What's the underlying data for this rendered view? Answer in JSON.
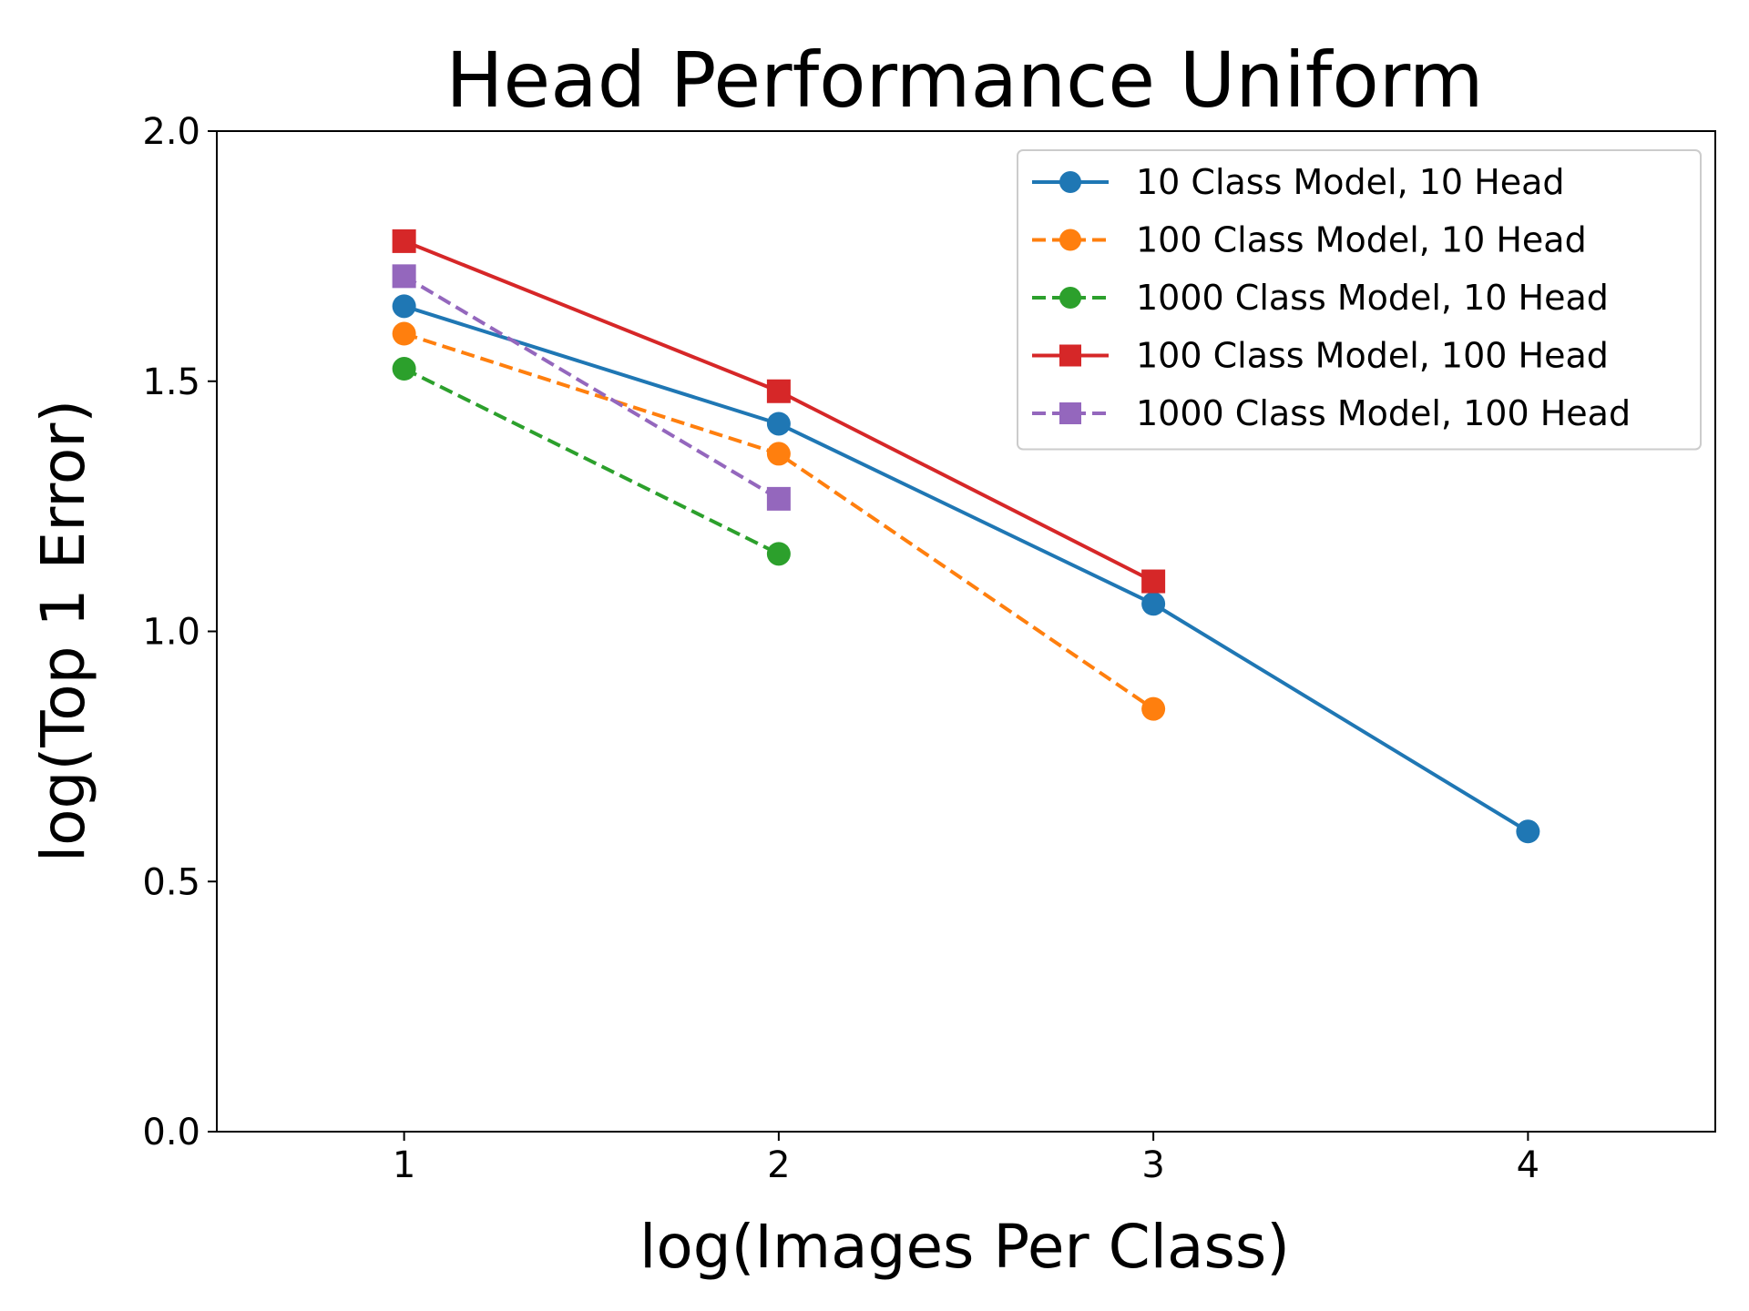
{
  "chart_data": {
    "type": "line",
    "title": "Head Performance Uniform",
    "xlabel": "log(Images Per Class)",
    "ylabel": "log(Top 1 Error)",
    "xlim": [
      0.5,
      4.5
    ],
    "ylim": [
      0.0,
      2.0
    ],
    "xticks": [
      1,
      2,
      3,
      4
    ],
    "xtick_labels": [
      "1",
      "2",
      "3",
      "4"
    ],
    "yticks": [
      0.0,
      0.5,
      1.0,
      1.5,
      2.0
    ],
    "ytick_labels": [
      "0.0",
      "0.5",
      "1.0",
      "1.5",
      "2.0"
    ],
    "grid": false,
    "legend_position": "top-right",
    "series": [
      {
        "name": "10 Class Model, 10 Head",
        "color": "#1f77b4",
        "dash": "solid",
        "marker": "circle",
        "x": [
          1,
          2,
          3,
          4
        ],
        "y": [
          1.65,
          1.415,
          1.055,
          0.6
        ]
      },
      {
        "name": "100 Class Model, 10 Head",
        "color": "#ff7f0e",
        "dash": "dashed",
        "marker": "circle",
        "x": [
          1,
          2,
          3
        ],
        "y": [
          1.595,
          1.355,
          0.845
        ]
      },
      {
        "name": "1000 Class Model, 10 Head",
        "color": "#2ca02c",
        "dash": "dashed",
        "marker": "circle",
        "x": [
          1,
          2
        ],
        "y": [
          1.525,
          1.155
        ]
      },
      {
        "name": "100 Class Model, 100 Head",
        "color": "#d62728",
        "dash": "solid",
        "marker": "square",
        "x": [
          1,
          2,
          3
        ],
        "y": [
          1.78,
          1.48,
          1.1
        ]
      },
      {
        "name": "1000 Class Model, 100 Head",
        "color": "#9467bd",
        "dash": "dashed",
        "marker": "square",
        "x": [
          1,
          2
        ],
        "y": [
          1.71,
          1.265
        ]
      }
    ]
  }
}
